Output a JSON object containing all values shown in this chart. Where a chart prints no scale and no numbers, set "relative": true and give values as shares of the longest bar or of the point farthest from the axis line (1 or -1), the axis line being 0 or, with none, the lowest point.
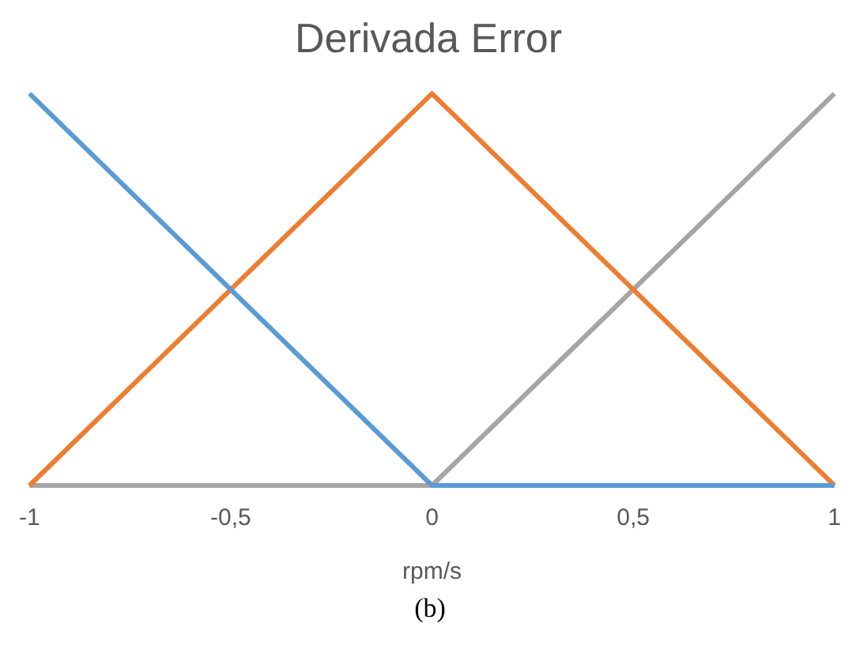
{
  "chart_data": {
    "type": "line",
    "title": "Derivada Error",
    "xlabel": "rpm/s",
    "annotations": [
      "(b)"
    ],
    "relative": true,
    "xlim": [
      -1,
      1
    ],
    "xticks": [
      -1,
      {
        "value": -0.5,
        "label": "-0,5"
      },
      0,
      {
        "value": 0.5,
        "label": "0,5"
      },
      1
    ],
    "grid": false,
    "legend": false,
    "marker": "none",
    "line_style": "solid",
    "series": [
      {
        "color": "#5b9bd5",
        "x": [
          -1,
          0,
          1
        ],
        "values": [
          1,
          0,
          0
        ]
      },
      {
        "color": "#ed7d31",
        "x": [
          -1,
          0,
          1
        ],
        "values": [
          0,
          1,
          0
        ]
      },
      {
        "color": "#a5a5a5",
        "x": [
          -1,
          0,
          1
        ],
        "values": [
          0,
          0,
          1
        ]
      }
    ]
  }
}
